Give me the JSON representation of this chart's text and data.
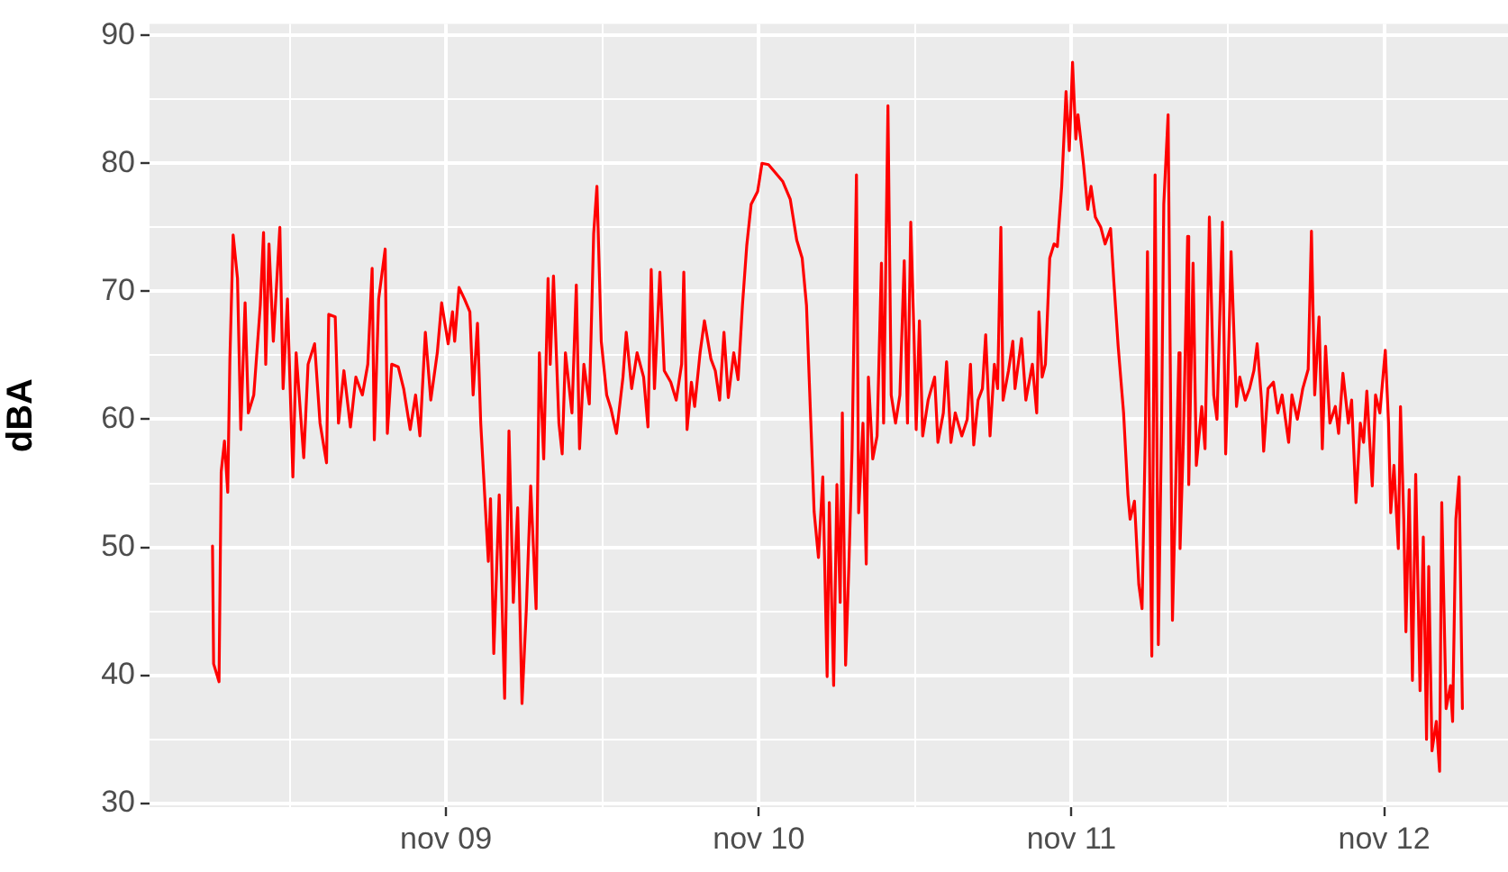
{
  "chart_data": {
    "type": "line",
    "ylabel": "dBA",
    "x": [
      "--11-08T06:05",
      "--11-08T06:10",
      "--11-08T06:35",
      "--11-08T06:45",
      "--11-08T07:00",
      "--11-08T07:15",
      "--11-08T07:25",
      "--11-08T07:40",
      "--11-08T08:00",
      "--11-08T08:15",
      "--11-08T08:35",
      "--11-08T08:50",
      "--11-08T09:15",
      "--11-08T09:45",
      "--11-08T10:00",
      "--11-08T10:10",
      "--11-08T10:25",
      "--11-08T10:45",
      "--11-08T11:15",
      "--11-08T11:30",
      "--11-08T11:50",
      "--11-08T12:15",
      "--11-08T12:30",
      "--11-08T12:50",
      "--11-08T13:05",
      "--11-08T13:25",
      "--11-08T13:55",
      "--11-08T14:20",
      "--11-08T14:50",
      "--11-08T15:00",
      "--11-08T15:30",
      "--11-08T15:45",
      "--11-08T16:10",
      "--11-08T16:40",
      "--11-08T17:05",
      "--11-08T17:35",
      "--11-08T18:00",
      "--11-08T18:20",
      "--11-08T18:30",
      "--11-08T18:50",
      "--11-08T19:20",
      "--11-08T19:30",
      "--11-08T19:50",
      "--11-08T20:20",
      "--11-08T20:45",
      "--11-08T21:15",
      "--11-08T21:40",
      "--11-08T22:00",
      "--11-08T22:25",
      "--11-08T22:50",
      "--11-08T23:20",
      "--11-08T23:40",
      "--11-09T00:10",
      "--11-09T00:30",
      "--11-09T00:40",
      "--11-09T01:00",
      "--11-09T01:25",
      "--11-09T01:50",
      "--11-09T02:05",
      "--11-09T02:25",
      "--11-09T02:40",
      "--11-09T03:15",
      "--11-09T03:25",
      "--11-09T03:40",
      "--11-09T04:05",
      "--11-09T04:30",
      "--11-09T04:50",
      "--11-09T05:10",
      "--11-09T05:30",
      "--11-09T05:50",
      "--11-09T06:10",
      "--11-09T06:30",
      "--11-09T06:55",
      "--11-09T07:10",
      "--11-09T07:30",
      "--11-09T07:50",
      "--11-09T08:00",
      "--11-09T08:15",
      "--11-09T08:40",
      "--11-09T08:55",
      "--11-09T09:10",
      "--11-09T09:40",
      "--11-09T10:00",
      "--11-09T10:15",
      "--11-09T10:35",
      "--11-09T11:00",
      "--11-09T11:20",
      "--11-09T11:35",
      "--11-09T11:55",
      "--11-09T12:20",
      "--11-09T12:40",
      "--11-09T13:05",
      "--11-09T13:35",
      "--11-09T13:50",
      "--11-09T14:15",
      "--11-09T14:40",
      "--11-09T15:10",
      "--11-09T15:30",
      "--11-09T15:45",
      "--11-09T16:00",
      "--11-09T16:25",
      "--11-09T16:45",
      "--11-09T17:15",
      "--11-09T17:40",
      "--11-09T18:05",
      "--11-09T18:15",
      "--11-09T18:30",
      "--11-09T18:50",
      "--11-09T19:05",
      "--11-09T19:30",
      "--11-09T19:50",
      "--11-09T20:20",
      "--11-09T20:40",
      "--11-09T21:00",
      "--11-09T21:20",
      "--11-09T21:40",
      "--11-09T22:05",
      "--11-09T22:25",
      "--11-09T22:45",
      "--11-09T23:05",
      "--11-09T23:25",
      "--11-09T23:55",
      "--11-10T00:15",
      "--11-10T00:45",
      "--11-10T01:15",
      "--11-10T01:50",
      "--11-10T02:25",
      "--11-10T02:55",
      "--11-10T03:20",
      "--11-10T03:40",
      "--11-10T04:00",
      "--11-10T04:15",
      "--11-10T04:35",
      "--11-10T04:55",
      "--11-10T05:15",
      "--11-10T05:25",
      "--11-10T05:45",
      "--11-10T06:00",
      "--11-10T06:15",
      "--11-10T06:25",
      "--11-10T06:40",
      "--11-10T06:55",
      "--11-10T07:10",
      "--11-10T07:30",
      "--11-10T07:40",
      "--11-10T08:00",
      "--11-10T08:15",
      "--11-10T08:25",
      "--11-10T08:45",
      "--11-10T09:05",
      "--11-10T09:25",
      "--11-10T09:35",
      "--11-10T09:55",
      "--11-10T10:10",
      "--11-10T10:30",
      "--11-10T10:50",
      "--11-10T11:10",
      "--11-10T11:25",
      "--11-10T11:40",
      "--11-10T11:55",
      "--11-10T12:05",
      "--11-10T12:20",
      "--11-10T12:35",
      "--11-10T13:00",
      "--11-10T13:30",
      "--11-10T13:45",
      "--11-10T14:10",
      "--11-10T14:25",
      "--11-10T14:45",
      "--11-10T15:05",
      "--11-10T15:35",
      "--11-10T16:00",
      "--11-10T16:15",
      "--11-10T16:30",
      "--11-10T16:50",
      "--11-10T17:10",
      "--11-10T17:25",
      "--11-10T17:45",
      "--11-10T18:05",
      "--11-10T18:20",
      "--11-10T18:35",
      "--11-10T18:45",
      "--11-10T19:10",
      "--11-10T19:30",
      "--11-10T19:40",
      "--11-10T20:10",
      "--11-10T20:30",
      "--11-10T21:00",
      "--11-10T21:20",
      "--11-10T21:30",
      "--11-10T21:45",
      "--11-10T22:00",
      "--11-10T22:20",
      "--11-10T22:40",
      "--11-10T22:55",
      "--11-10T23:15",
      "--11-10T23:35",
      "--11-10T23:50",
      "--11-11T00:05",
      "--11-11T00:20",
      "--11-11T00:30",
      "--11-11T00:55",
      "--11-11T01:15",
      "--11-11T01:30",
      "--11-11T01:50",
      "--11-11T02:15",
      "--11-11T02:35",
      "--11-11T03:00",
      "--11-11T03:15",
      "--11-11T03:35",
      "--11-11T04:00",
      "--11-11T04:20",
      "--11-11T04:30",
      "--11-11T04:50",
      "--11-11T05:10",
      "--11-11T05:25",
      "--11-11T05:40",
      "--11-11T05:50",
      "--11-11T06:05",
      "--11-11T06:10",
      "--11-11T06:25",
      "--11-11T06:40",
      "--11-11T06:55",
      "--11-11T07:05",
      "--11-11T07:25",
      "--11-11T07:35",
      "--11-11T07:45",
      "--11-11T08:00",
      "--11-11T08:15",
      "--11-11T08:20",
      "--11-11T08:35",
      "--11-11T08:55",
      "--11-11T09:00",
      "--11-11T09:20",
      "--11-11T09:35",
      "--11-11T10:00",
      "--11-11T10:15",
      "--11-11T10:35",
      "--11-11T10:55",
      "--11-11T11:10",
      "--11-11T11:35",
      "--11-11T11:50",
      "--11-11T12:00",
      "--11-11T12:15",
      "--11-11T12:40",
      "--11-11T12:55",
      "--11-11T13:20",
      "--11-11T13:40",
      "--11-11T14:00",
      "--11-11T14:15",
      "--11-11T14:35",
      "--11-11T14:45",
      "--11-11T15:05",
      "--11-11T15:30",
      "--11-11T15:50",
      "--11-11T16:10",
      "--11-11T16:40",
      "--11-11T16:55",
      "--11-11T17:20",
      "--11-11T17:45",
      "--11-11T18:10",
      "--11-11T18:25",
      "--11-11T18:40",
      "--11-11T19:00",
      "--11-11T19:15",
      "--11-11T19:30",
      "--11-11T19:50",
      "--11-11T20:15",
      "--11-11T20:30",
      "--11-11T20:50",
      "--11-11T21:15",
      "--11-11T21:30",
      "--11-11T21:50",
      "--11-11T22:10",
      "--11-11T22:25",
      "--11-11T22:40",
      "--11-11T23:05",
      "--11-11T23:20",
      "--11-11T23:40",
      "--11-12T00:05",
      "--11-12T00:20",
      "--11-12T00:30",
      "--11-12T00:45",
      "--11-12T01:05",
      "--11-12T01:15",
      "--11-12T01:30",
      "--11-12T01:40",
      "--11-12T01:55",
      "--11-12T02:10",
      "--11-12T02:25",
      "--11-12T02:45",
      "--11-12T03:00",
      "--11-12T03:15",
      "--11-12T03:25",
      "--11-12T03:40",
      "--11-12T04:00",
      "--11-12T04:15",
      "--11-12T04:25",
      "--11-12T04:45",
      "--11-12T05:05",
      "--11-12T05:15",
      "--11-12T05:30",
      "--11-12T05:45",
      "--11-12T06:00"
    ],
    "series": [
      {
        "color": "#ff0000",
        "values": [
          50.1,
          40.9,
          39.5,
          55.9,
          58.3,
          54.3,
          64.7,
          74.4,
          71.0,
          59.2,
          69.1,
          60.5,
          61.9,
          68.9,
          74.6,
          64.3,
          73.7,
          66.1,
          75.0,
          62.4,
          69.4,
          55.5,
          65.2,
          60.5,
          57.0,
          64.3,
          65.9,
          59.7,
          56.6,
          68.2,
          68.0,
          59.7,
          63.8,
          59.4,
          63.3,
          61.9,
          64.3,
          71.8,
          58.4,
          69.4,
          73.3,
          58.9,
          64.3,
          64.1,
          62.4,
          59.2,
          61.9,
          58.7,
          66.8,
          61.5,
          65.2,
          69.1,
          65.9,
          68.4,
          66.1,
          70.3,
          69.4,
          68.4,
          61.9,
          67.5,
          59.7,
          48.9,
          53.8,
          41.7,
          54.1,
          38.2,
          59.1,
          45.7,
          53.1,
          37.8,
          45.2,
          54.8,
          45.2,
          65.2,
          56.9,
          71.0,
          64.3,
          71.2,
          59.7,
          57.3,
          65.2,
          60.5,
          70.5,
          57.7,
          64.3,
          61.2,
          74.5,
          78.2,
          66.1,
          61.9,
          60.8,
          58.9,
          63.3,
          66.8,
          62.4,
          65.2,
          63.3,
          59.4,
          71.7,
          62.4,
          71.5,
          63.8,
          62.9,
          61.5,
          64.3,
          71.5,
          59.2,
          62.9,
          61.0,
          65.2,
          67.7,
          64.7,
          63.8,
          61.5,
          66.8,
          61.7,
          65.2,
          63.1,
          68.9,
          73.6,
          76.8,
          77.8,
          80.0,
          79.9,
          79.3,
          78.6,
          77.2,
          74.0,
          72.6,
          68.9,
          59.7,
          52.8,
          49.2,
          55.5,
          39.9,
          53.5,
          39.2,
          54.9,
          45.7,
          60.5,
          40.8,
          48.5,
          57.7,
          79.1,
          52.7,
          59.7,
          48.7,
          63.3,
          56.9,
          58.7,
          72.2,
          59.7,
          84.5,
          61.9,
          59.7,
          61.9,
          72.4,
          59.7,
          75.4,
          66.6,
          59.2,
          67.7,
          58.7,
          61.5,
          63.3,
          58.2,
          60.5,
          64.5,
          58.2,
          60.5,
          58.7,
          60.0,
          64.3,
          58.0,
          61.5,
          62.4,
          66.6,
          58.7,
          64.3,
          62.4,
          75.0,
          61.5,
          63.8,
          66.1,
          62.4,
          66.3,
          61.5,
          64.3,
          60.5,
          68.4,
          63.3,
          64.3,
          72.6,
          73.7,
          73.5,
          78.2,
          85.6,
          81.0,
          87.9,
          81.9,
          83.8,
          80.0,
          76.4,
          78.2,
          75.8,
          75.0,
          73.7,
          74.9,
          70.8,
          65.7,
          60.5,
          54.1,
          52.2,
          53.6,
          47.1,
          45.2,
          58.7,
          73.1,
          48.0,
          41.5,
          79.1,
          42.4,
          59.7,
          76.8,
          83.8,
          64.3,
          44.3,
          54.9,
          65.2,
          49.9,
          58.2,
          74.3,
          54.9,
          72.2,
          56.4,
          61.0,
          57.7,
          75.8,
          61.9,
          60.0,
          75.4,
          57.3,
          62.9,
          73.1,
          61.0,
          63.3,
          61.5,
          62.4,
          63.8,
          65.9,
          61.5,
          57.5,
          62.4,
          62.9,
          60.5,
          61.9,
          58.2,
          61.9,
          60.0,
          62.4,
          63.9,
          74.7,
          61.9,
          68.0,
          57.7,
          65.7,
          59.7,
          61.0,
          58.9,
          63.6,
          59.7,
          61.5,
          53.5,
          59.7,
          58.2,
          62.2,
          54.8,
          61.9,
          60.5,
          65.4,
          59.7,
          52.7,
          56.4,
          49.9,
          61.0,
          52.2,
          43.4,
          54.5,
          39.6,
          55.7,
          38.8,
          50.8,
          35.0,
          48.5,
          34.1,
          36.4,
          32.5,
          53.5,
          37.4,
          39.2,
          36.4,
          52.2,
          55.5,
          37.4
        ]
      }
    ],
    "xlim": [
      "--11-08T01:15",
      "--11-12T09:30"
    ],
    "xticks": [
      {
        "value": "--11-08T12:00",
        "label": null
      },
      {
        "value": "--11-09",
        "label": "nov 09"
      },
      {
        "value": "--11-09T12:00",
        "label": null
      },
      {
        "value": "--11-10",
        "label": "nov 10"
      },
      {
        "value": "--11-10T12:00",
        "label": null
      },
      {
        "value": "--11-11",
        "label": "nov 11"
      },
      {
        "value": "--11-11T12:00",
        "label": null
      },
      {
        "value": "--11-12",
        "label": "nov 12"
      }
    ],
    "ylim": [
      29.7,
      90.9
    ],
    "yticks": [
      30,
      {
        "value": 35,
        "label": null
      },
      40,
      {
        "value": 45,
        "label": null
      },
      50,
      {
        "value": 55,
        "label": null
      },
      60,
      {
        "value": 65,
        "label": null
      },
      70,
      {
        "value": 75,
        "label": null
      },
      80,
      {
        "value": 85,
        "label": null
      },
      90
    ],
    "grid": true
  }
}
